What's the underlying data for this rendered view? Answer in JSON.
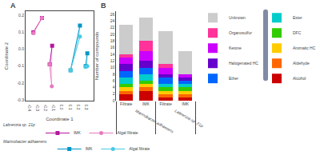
{
  "chart_data": [
    {
      "type": "scatter",
      "panel_label": "A",
      "xlabel": "Coordinate 1",
      "ylabel": "Coordinate 2",
      "xlim": [
        -0.45,
        0.38
      ],
      "ylim": [
        -0.305,
        0.225
      ],
      "xticks": [
        -0.4,
        -0.3,
        -0.2,
        -0.1,
        {
          "value": 0,
          "label": "0.0"
        },
        0.1,
        0.2,
        0.3
      ],
      "yticks": [
        -0.3,
        -0.2,
        -0.1,
        {
          "value": 0,
          "label": "0.0"
        },
        0.1,
        0.2
      ],
      "grid": false,
      "legend": "bottom",
      "series": [
        {
          "name": "IMK",
          "group": "Labrenzia sp. 21p",
          "color": "#b5179e",
          "marker": "square",
          "line_style": "solid",
          "x": [
            -0.355,
            -0.25,
            null,
            -0.155,
            -0.125
          ],
          "y": [
            0.1,
            0.185,
            null,
            -0.09,
            0.02
          ]
        },
        {
          "name": "Algal filtrate",
          "group": "Labrenzia sp. 21p",
          "color": "#e879c0",
          "marker": "circle",
          "line_style": "solid",
          "x": [
            -0.355,
            -0.25,
            null,
            -0.155,
            -0.13
          ],
          "y": [
            0.095,
            0.185,
            null,
            -0.09,
            -0.22
          ]
        },
        {
          "name": "IMK",
          "group": "Marinobacter adhaerens",
          "color": "#0096c7",
          "marker": "square",
          "line_style": "solid",
          "x": [
            0.1,
            0.215,
            null,
            0.285,
            0.305
          ],
          "y": [
            -0.125,
            0.14,
            null,
            -0.1,
            -0.025
          ]
        },
        {
          "name": "Algal filtrate",
          "group": "Marinobacter adhaerens",
          "color": "#48cae4",
          "marker": "circle",
          "line_style": "solid",
          "x": [
            0.1,
            0.215,
            null,
            0.285,
            0.305
          ],
          "y": [
            -0.125,
            0.075,
            null,
            -0.105,
            -0.1
          ]
        }
      ],
      "areas": [
        {
          "color": "#e879c0",
          "x": [
            -0.355,
            -0.25,
            -0.355
          ],
          "y": [
            0.1,
            0.185,
            0.095
          ]
        },
        {
          "color": "#e879c0",
          "x": [
            -0.155,
            -0.125,
            -0.13
          ],
          "y": [
            -0.09,
            0.02,
            -0.22
          ]
        },
        {
          "color": "#48cae4",
          "x": [
            0.1,
            0.215,
            0.215
          ],
          "y": [
            -0.125,
            0.14,
            0.075
          ]
        },
        {
          "color": "#48cae4",
          "x": [
            0.285,
            0.305,
            0.305
          ],
          "y": [
            -0.1,
            -0.025,
            -0.105
          ]
        }
      ]
    },
    {
      "type": "bar",
      "panel_label": "B",
      "stacked": true,
      "ylabel": "Number of compounds",
      "categories": [
        "Filtrate",
        "IMK",
        "Filtrate",
        "IMK"
      ],
      "groups": [
        "Marinobacter adhaerens",
        "Marinobacter adhaerens",
        "Labrenzia sp. 21p",
        "Labrenzia sp. 21p"
      ],
      "ylim": [
        0,
        27
      ],
      "yticks": [
        0,
        2,
        4,
        6,
        8,
        10,
        12,
        14,
        16,
        18,
        20,
        22,
        24,
        26
      ],
      "grid": false,
      "legend": "right",
      "series": [
        {
          "name": "Alcohol",
          "color": "#cc0000",
          "values": [
            2,
            3,
            1,
            1
          ]
        },
        {
          "name": "Aldehyde",
          "color": "#ff6600",
          "values": [
            1,
            1,
            1,
            1
          ]
        },
        {
          "name": "Aromatic HC",
          "color": "#ffcc00",
          "values": [
            1,
            1,
            1,
            1
          ]
        },
        {
          "name": "DFC",
          "color": "#33cc00",
          "values": [
            1,
            1,
            1,
            1
          ]
        },
        {
          "name": "Ester",
          "color": "#00cccc",
          "values": [
            2,
            2,
            1,
            1
          ]
        },
        {
          "name": "Ether",
          "color": "#0066ff",
          "values": [
            2,
            2,
            2,
            1
          ]
        },
        {
          "name": "Halogenated HC",
          "color": "#6600cc",
          "values": [
            2,
            2,
            1,
            1
          ]
        },
        {
          "name": "Ketone",
          "color": "#cc00ff",
          "values": [
            2,
            3,
            2,
            1
          ]
        },
        {
          "name": "Organosulfur",
          "color": "#ff3399",
          "values": [
            1,
            3,
            1,
            0
          ]
        },
        {
          "name": "Unknown",
          "color": "#cccccc",
          "values": [
            9,
            7,
            10,
            7
          ]
        }
      ]
    }
  ]
}
